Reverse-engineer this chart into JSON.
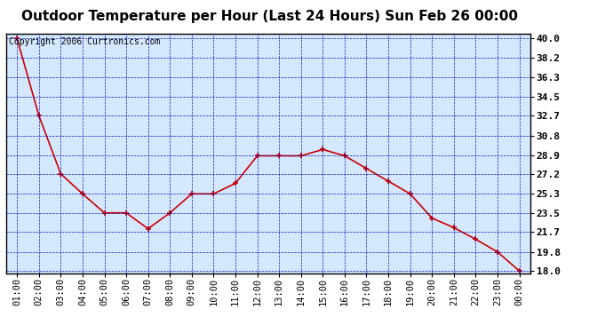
{
  "title": "Outdoor Temperature per Hour (Last 24 Hours) Sun Feb 26 00:00",
  "copyright": "Copyright 2006 Curtronics.com",
  "hours": [
    "01:00",
    "02:00",
    "03:00",
    "04:00",
    "05:00",
    "06:00",
    "07:00",
    "08:00",
    "09:00",
    "10:00",
    "11:00",
    "12:00",
    "13:00",
    "14:00",
    "15:00",
    "16:00",
    "17:00",
    "18:00",
    "19:00",
    "20:00",
    "21:00",
    "22:00",
    "23:00",
    "00:00"
  ],
  "temps": [
    40.0,
    32.7,
    27.2,
    25.3,
    23.5,
    23.5,
    22.0,
    23.5,
    25.3,
    25.3,
    26.3,
    28.9,
    28.9,
    28.9,
    29.5,
    28.9,
    27.7,
    26.5,
    25.3,
    23.0,
    22.1,
    21.0,
    19.8,
    18.0
  ],
  "ylim": [
    17.8,
    40.5
  ],
  "yticks": [
    18.0,
    19.8,
    21.7,
    23.5,
    25.3,
    27.2,
    28.9,
    30.8,
    32.7,
    34.5,
    36.3,
    38.2,
    40.0
  ],
  "line_color": "#cc0000",
  "marker_color": "#cc0000",
  "bg_color": "#d4e8ff",
  "grid_color": "#0000bb",
  "title_fontsize": 11,
  "copyright_fontsize": 7,
  "tick_fontsize": 7.5,
  "ytick_fontsize": 8
}
